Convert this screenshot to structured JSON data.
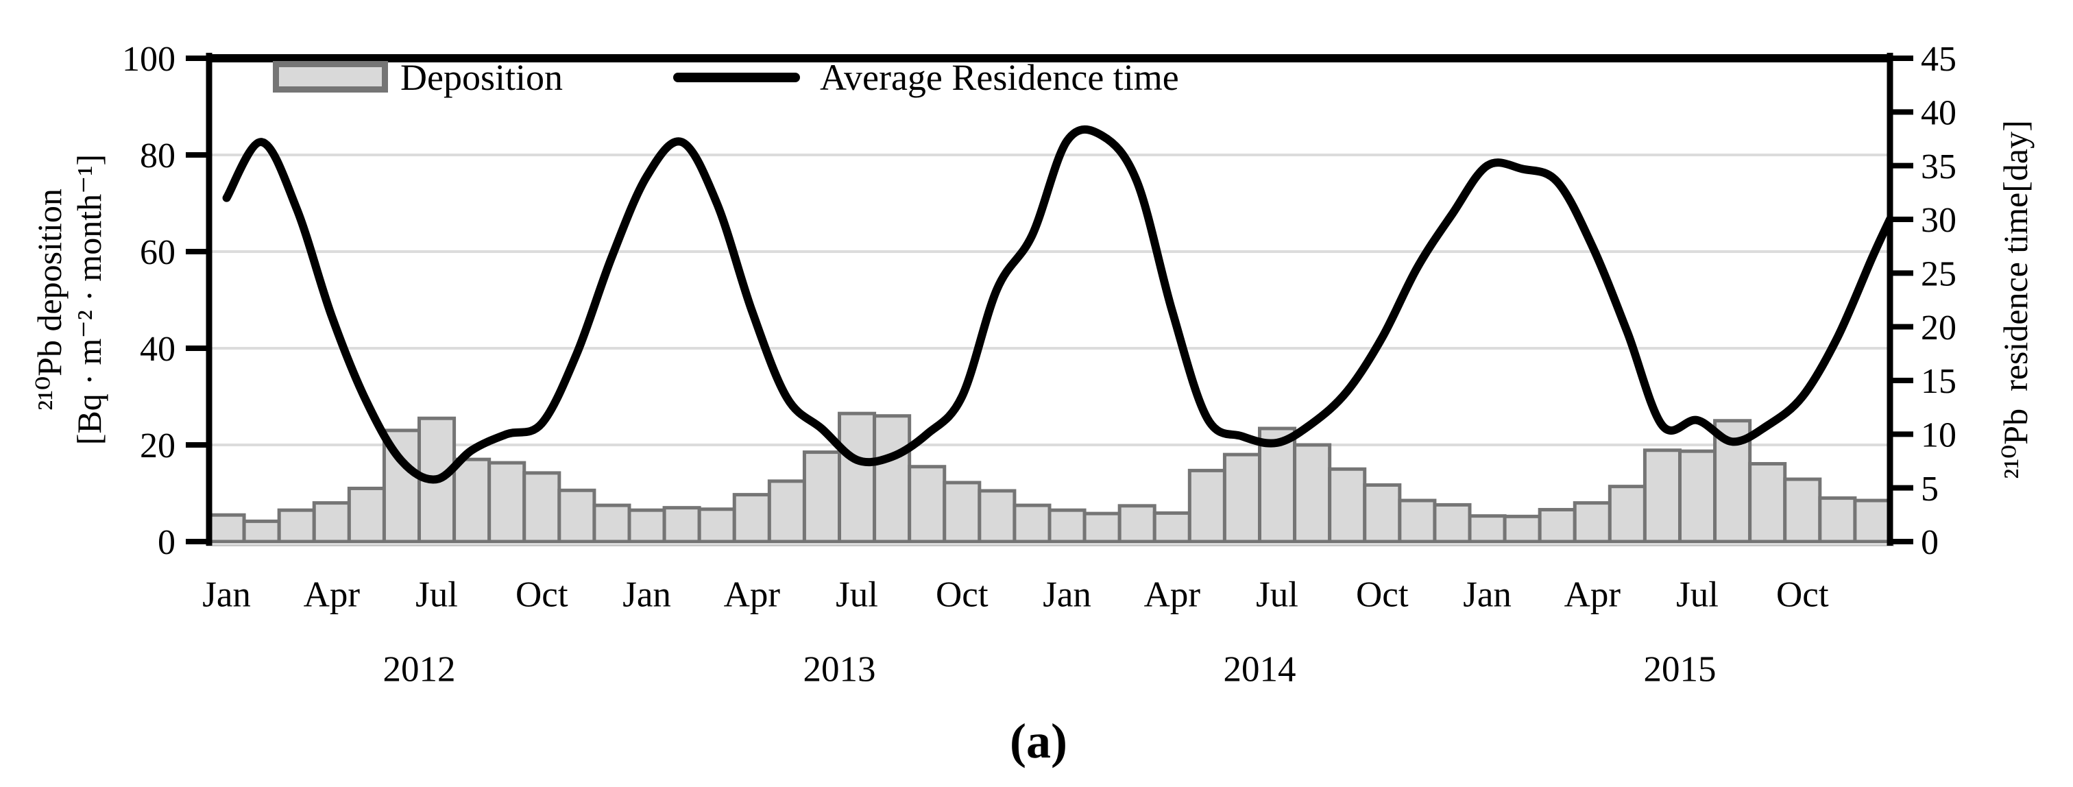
{
  "legend": {
    "deposition_label": "Deposition",
    "residence_label": "Average Residence time"
  },
  "left_axis": {
    "title_line1": "²¹⁰Pb deposition",
    "title_line2": "[Bq · m⁻² · month⁻¹]",
    "ticks": [
      0,
      20,
      40,
      60,
      80,
      100
    ],
    "range": [
      0,
      100
    ]
  },
  "right_axis": {
    "title": "²¹⁰Pb  residence time[day]",
    "ticks": [
      0,
      5,
      10,
      15,
      20,
      25,
      30,
      35,
      40,
      45
    ],
    "range": [
      0,
      45
    ]
  },
  "x_axis": {
    "tick_month_labels": [
      "Jan",
      "Apr",
      "Jul",
      "Oct"
    ],
    "years": [
      "2012",
      "2013",
      "2014",
      "2015"
    ]
  },
  "caption": "(a)",
  "colors": {
    "bar_fill": "#d9d9d9",
    "bar_border": "#757575",
    "line": "#000000",
    "grid": "#dcdcdc",
    "axis": "#000000",
    "baseline": "#757575",
    "baseline_shadow": "#c8c8c8",
    "text": "#000000"
  },
  "chart_data": {
    "type": "bar",
    "subtype": "bar+line dual axis",
    "title": "",
    "xlabel": "",
    "ylabel_left": "210Pb deposition [Bq·m-2·month-1]",
    "ylabel_right": "210Pb residence time [day]",
    "ylim_left": [
      0,
      100
    ],
    "ylim_right": [
      0,
      45
    ],
    "grid": "horizontal at left-axis 20,40,60,80",
    "legend_position": "top inside",
    "gridlines_left_values": [
      20,
      40,
      60,
      80
    ],
    "categories": [
      "Jan 2012",
      "Feb 2012",
      "Mar 2012",
      "Apr 2012",
      "May 2012",
      "Jun 2012",
      "Jul 2012",
      "Aug 2012",
      "Sep 2012",
      "Oct 2012",
      "Nov 2012",
      "Dec 2012",
      "Jan 2013",
      "Feb 2013",
      "Mar 2013",
      "Apr 2013",
      "May 2013",
      "Jun 2013",
      "Jul 2013",
      "Aug 2013",
      "Sep 2013",
      "Oct 2013",
      "Nov 2013",
      "Dec 2013",
      "Jan 2014",
      "Feb 2014",
      "Mar 2014",
      "Apr 2014",
      "May 2014",
      "Jun 2014",
      "Jul 2014",
      "Aug 2014",
      "Sep 2014",
      "Oct 2014",
      "Nov 2014",
      "Dec 2014",
      "Jan 2015",
      "Feb 2015",
      "Mar 2015",
      "Apr 2015",
      "May 2015",
      "Jun 2015",
      "Jul 2015",
      "Aug 2015",
      "Sep 2015",
      "Oct 2015",
      "Nov 2015",
      "Dec 2015"
    ],
    "series": [
      {
        "name": "Deposition",
        "type": "bar",
        "y_axis": "left",
        "unit": "Bq·m-2·month-1",
        "values": [
          5.5,
          4.2,
          6.5,
          8,
          11,
          23,
          25.5,
          17,
          16.3,
          14.2,
          10.6,
          7.5,
          6.5,
          7,
          6.7,
          9.7,
          12.5,
          18.5,
          26.5,
          26,
          15.5,
          12.2,
          10.5,
          7.5,
          6.5,
          5.8,
          7.4,
          5.9,
          14.7,
          18,
          23.4,
          20,
          15,
          11.7,
          8.5,
          7.6,
          5.3,
          5.2,
          6.6,
          8,
          11.4,
          18.9,
          18.7,
          25,
          16.1,
          12.9,
          9,
          8.5
        ]
      },
      {
        "name": "Average Residence time",
        "type": "line",
        "y_axis": "right",
        "unit": "day",
        "values": [
          32,
          37.2,
          31,
          21,
          13,
          7.5,
          5.8,
          8.5,
          10,
          11,
          17.5,
          26.5,
          34,
          37.2,
          31.5,
          21.5,
          13.4,
          10.5,
          7.6,
          7.9,
          10,
          13.5,
          23.5,
          28.5,
          37.3,
          37.8,
          33.5,
          21.5,
          11.5,
          9.8,
          9.2,
          11,
          14,
          19,
          25.5,
          30.5,
          35,
          34.7,
          33.5,
          27.5,
          19.5,
          10.8,
          11.3,
          9.3,
          10.8,
          13.5,
          19,
          26.5
        ],
        "end_value_at_right_edge": 30
      }
    ]
  }
}
